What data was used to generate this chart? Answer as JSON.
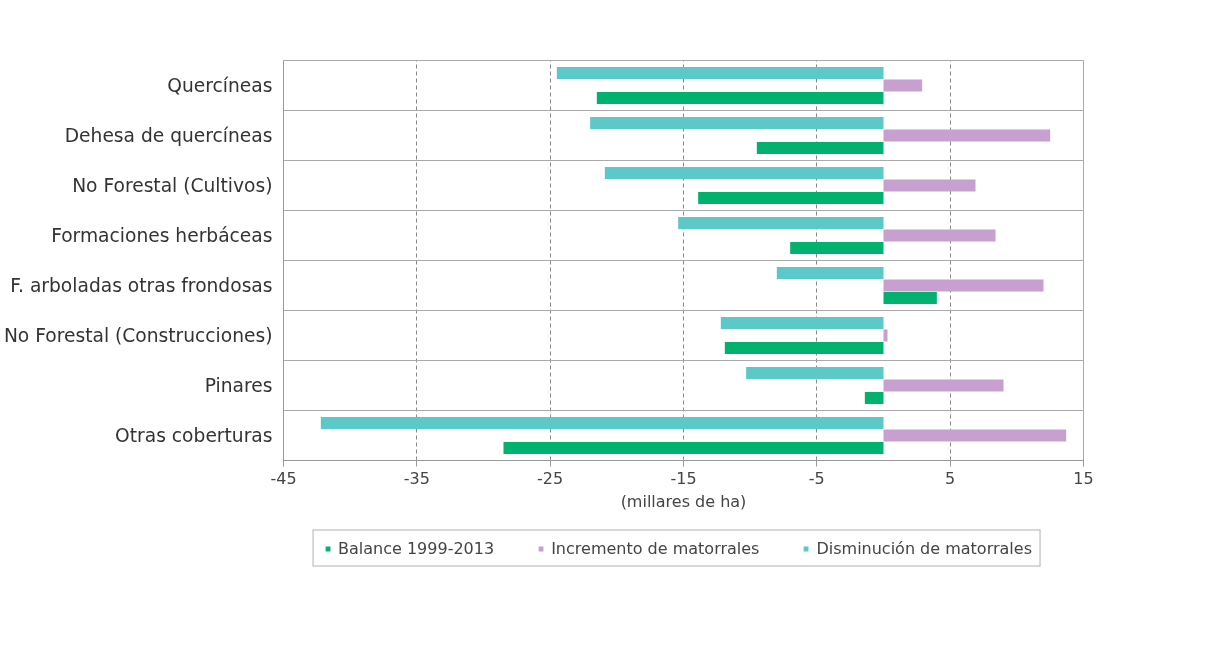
{
  "chart_data": {
    "type": "bar",
    "orientation": "horizontal",
    "categories": [
      "Quercíneas",
      "Dehesa de quercíneas",
      "No Forestal (Cultivos)",
      "Formaciones herbáceas",
      "F. arboladas otras frondosas",
      "No Forestal (Construcciones)",
      "Pinares",
      "Otras coberturas"
    ],
    "series": [
      {
        "name": "Balance 1999-2013",
        "color": "#00b26e",
        "values": [
          -21.5,
          -9.5,
          -13.9,
          -7.0,
          4.0,
          -11.9,
          -1.4,
          -28.5
        ]
      },
      {
        "name": "Incremento de matorrales",
        "color": "#c8a0d0",
        "values": [
          2.9,
          12.5,
          6.9,
          8.4,
          12.0,
          0.3,
          9.0,
          13.7
        ]
      },
      {
        "name": "Disminución de matorrales",
        "color": "#5cc8c8",
        "values": [
          -24.5,
          -22.0,
          -20.9,
          -15.4,
          -8.0,
          -12.2,
          -10.3,
          -42.2
        ]
      }
    ],
    "xlabel": "(millares de ha)",
    "xlim": [
      -45,
      15
    ],
    "xticks": [
      -45,
      -35,
      -25,
      -15,
      -5,
      5,
      15
    ],
    "grid": "x",
    "legend": "bottom"
  }
}
